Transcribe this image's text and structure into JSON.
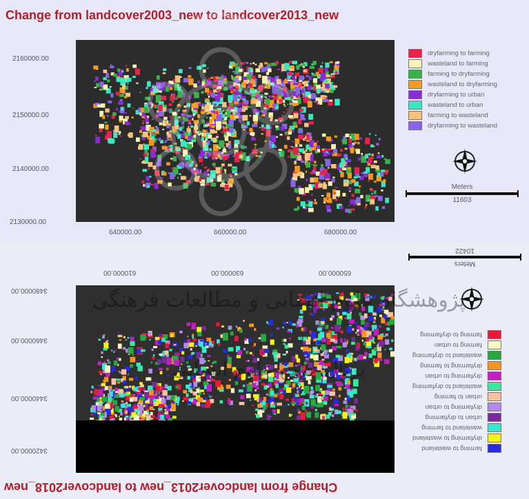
{
  "top_map": {
    "title": "Change from landcover2003_new to landcover2013_new",
    "y_ticks": [
      "2160000.00",
      "2150000.00",
      "2140000.00",
      "2130000.00"
    ],
    "x_ticks": [
      "640000.00",
      "660000.00",
      "680000.00"
    ],
    "legend": [
      {
        "label": "dryfarming to farming",
        "color": "#e8224a"
      },
      {
        "label": "wasteland to farming",
        "color": "#fbf3b0"
      },
      {
        "label": "farming to dryfarming",
        "color": "#38b24a"
      },
      {
        "label": "wasteland to dryfarming",
        "color": "#f59a1e"
      },
      {
        "label": "dryfarming to urban",
        "color": "#8a2bd4"
      },
      {
        "label": "wasteland to urban",
        "color": "#39e8c0"
      },
      {
        "label": "farming to wasteland",
        "color": "#f7c27e"
      },
      {
        "label": "dryfarming to wasteland",
        "color": "#8a64e8"
      }
    ],
    "scale_unit": "Meters",
    "scale_value": "11603"
  },
  "bottom_map": {
    "title": "Change from landcover2013_new to landcover2018_new",
    "y_ticks": [
      "3480000.00",
      "3460000.00",
      "3440000.00",
      "3420000.00"
    ],
    "x_ticks": [
      "610000.00",
      "630000.00",
      "650000.00"
    ],
    "legend": [
      {
        "label": "farming to wasteland",
        "color": "#2a2ae0"
      },
      {
        "label": "dryfarming to wasteland",
        "color": "#f7f21e"
      },
      {
        "label": "wasteland to farming",
        "color": "#39e8d0"
      },
      {
        "label": "urban to dryfarming",
        "color": "#7a2a9a"
      },
      {
        "label": "dryfarming to urban",
        "color": "#b28ae8"
      },
      {
        "label": "urban to farming",
        "color": "#f7c2a0"
      },
      {
        "label": "wasteland to dryfarming",
        "color": "#3ae8a0"
      },
      {
        "label": "dryfarming to urban",
        "color": "#c020c0"
      },
      {
        "label": "dryfarming to farming",
        "color": "#f5941e"
      },
      {
        "label": "wasteland to dryfarming",
        "color": "#28a840"
      },
      {
        "label": "farming to urban",
        "color": "#fbf6c0"
      },
      {
        "label": "farming to dryfarming",
        "color": "#e81a3a"
      }
    ],
    "scale_unit": "Meters",
    "scale_value": "10422"
  },
  "watermark": {
    "line1": "پژوهشگاه علوم انسانی و مطالعات فرهنگی",
    "line2": "پرتال جامع علوم انسانی"
  }
}
